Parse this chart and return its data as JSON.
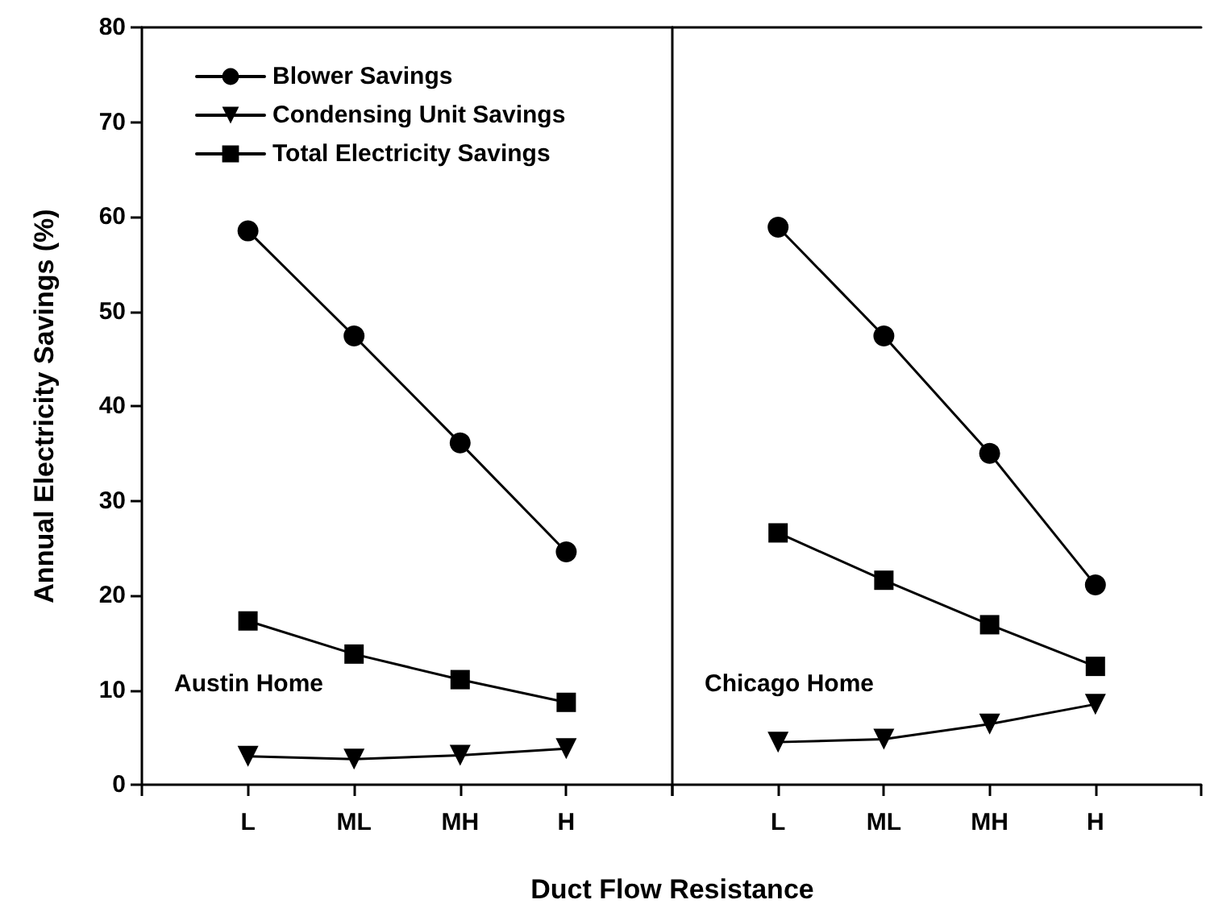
{
  "chart_data": [
    {
      "type": "line",
      "xlabel": "Duct Flow Resistance",
      "ylabel": "Annual Electricity Savings (%)",
      "categories": [
        "L",
        "ML",
        "MH",
        "H"
      ],
      "series": [
        {
          "name": "Blower Savings",
          "color": "#000000",
          "marker": "circle",
          "values": [
            58.5,
            47.4,
            36.1,
            24.6
          ]
        },
        {
          "name": "Condensing Unit Savings",
          "color": "#000000",
          "marker": "triangle",
          "values": [
            3.0,
            2.7,
            3.1,
            3.8
          ]
        },
        {
          "name": "Total Electricity Savings",
          "color": "#000000",
          "marker": "square",
          "values": [
            17.3,
            13.8,
            11.1,
            8.7
          ]
        }
      ],
      "ylim": [
        0,
        80
      ],
      "yticks": [
        0,
        10,
        20,
        30,
        40,
        50,
        60,
        70,
        80
      ],
      "legend": "top left",
      "annotations": [
        "Austin Home"
      ]
    },
    {
      "type": "line",
      "categories": [
        "L",
        "ML",
        "MH",
        "H"
      ],
      "series": [
        {
          "color": "#000000",
          "marker": "circle",
          "values": [
            58.9,
            47.4,
            35.0,
            21.1
          ]
        },
        {
          "color": "#000000",
          "marker": "triangle",
          "values": [
            4.5,
            4.8,
            6.4,
            8.5
          ]
        },
        {
          "color": "#000000",
          "marker": "square",
          "values": [
            26.6,
            21.6,
            16.9,
            12.5
          ]
        }
      ],
      "ylim": [
        0,
        80
      ],
      "yticks": [
        0,
        10,
        20,
        30,
        40,
        50,
        60,
        70,
        80
      ],
      "tick_labels": "x",
      "annotations": [
        "Chicago Home"
      ]
    }
  ]
}
